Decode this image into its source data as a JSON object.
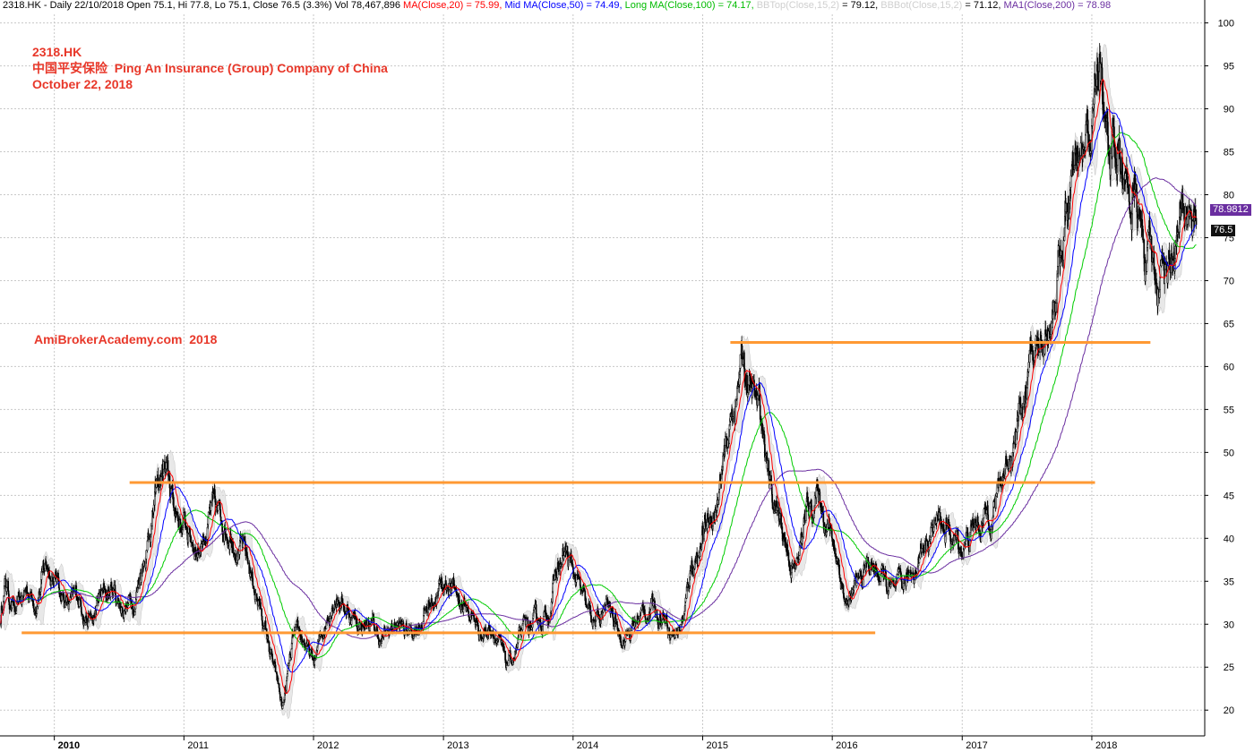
{
  "header": {
    "symbol_info": "2318.HK - Daily 22/10/2018 Open 75.1, Hi 77.8, Lo 75.1, Close 76.5 (3.3%) Vol 78,467,896 ",
    "ma20_text": "MA(Close,20) = 75.99, ",
    "ma50_text": "Mid MA(Close,50) = 74.49, ",
    "ma100_text": "Long MA(Close,100) = 74.17, ",
    "bbtop_label": "BBTop(Close,15,2)",
    "bbtop_value": " = 79.12, ",
    "bbbot_label": "BBBot(Close,15,2)",
    "bbbot_value": " = 71.12, ",
    "ma200_text": "MA1(Close,200) = 78.98"
  },
  "title": {
    "line1": "2318.HK",
    "line2": "中国平安保险  Ping An Insurance (Group) Company of China",
    "line3": "October 22, 2018"
  },
  "watermark": "AmiBrokerAcademy.com  2018",
  "price_tags": {
    "ma200": "78.9812",
    "close": "76.5"
  },
  "colors": {
    "accent_text": "#e8382a",
    "ma20": "#ff0000",
    "ma50": "#0000ff",
    "ma100": "#00cc00",
    "ma200": "#6a2ea0",
    "bollinger_band": "#d9d9d9",
    "resistance": "#ff9933",
    "candles": "#000000",
    "grid": "#c8c8c8"
  },
  "chart_data": {
    "type": "candlestick",
    "ylim": [
      17,
      101
    ],
    "y_ticks": [
      20,
      25,
      30,
      35,
      40,
      45,
      50,
      55,
      60,
      65,
      70,
      75,
      80,
      85,
      90,
      95,
      100
    ],
    "x_tick_labels": [
      "2010",
      "2011",
      "2012",
      "2013",
      "2014",
      "2015",
      "2016",
      "2017",
      "2018"
    ],
    "x_tick_dates": [
      "2010-01-01",
      "2011-01-01",
      "2012-01-01",
      "2013-01-01",
      "2014-01-01",
      "2015-01-01",
      "2016-01-01",
      "2017-01-01",
      "2018-01-01"
    ],
    "x_start": "2009-08-01",
    "x_end": "2018-11-15",
    "grid": true,
    "price_path": [
      [
        "2009-08-01",
        30
      ],
      [
        "2009-08-15",
        35
      ],
      [
        "2009-09-15",
        31
      ],
      [
        "2009-10-15",
        34
      ],
      [
        "2009-11-10",
        33
      ],
      [
        "2009-12-10",
        37
      ],
      [
        "2010-01-10",
        35
      ],
      [
        "2010-02-10",
        32
      ],
      [
        "2010-03-10",
        33
      ],
      [
        "2010-04-20",
        30
      ],
      [
        "2010-05-10",
        33
      ],
      [
        "2010-06-15",
        34
      ],
      [
        "2010-07-10",
        32
      ],
      [
        "2010-08-15",
        33
      ],
      [
        "2010-09-15",
        39
      ],
      [
        "2010-10-15",
        45
      ],
      [
        "2010-11-05",
        48
      ],
      [
        "2010-12-01",
        44
      ],
      [
        "2010-12-25",
        42
      ],
      [
        "2011-02-10",
        39
      ],
      [
        "2011-03-20",
        43
      ],
      [
        "2011-04-15",
        42
      ],
      [
        "2011-05-20",
        41
      ],
      [
        "2011-06-20",
        38
      ],
      [
        "2011-07-15",
        35
      ],
      [
        "2011-08-20",
        29
      ],
      [
        "2011-09-15",
        24
      ],
      [
        "2011-10-05",
        20
      ],
      [
        "2011-11-05",
        28
      ],
      [
        "2011-12-05",
        28
      ],
      [
        "2012-01-01",
        25
      ],
      [
        "2012-02-01",
        30
      ],
      [
        "2012-03-01",
        34
      ],
      [
        "2012-04-01",
        32
      ],
      [
        "2012-05-10",
        30
      ],
      [
        "2012-06-10",
        30
      ],
      [
        "2012-07-10",
        28
      ],
      [
        "2012-08-20",
        30
      ],
      [
        "2012-09-20",
        29
      ],
      [
        "2012-10-20",
        30
      ],
      [
        "2012-12-15",
        34
      ],
      [
        "2013-01-15",
        35
      ],
      [
        "2013-02-15",
        33
      ],
      [
        "2013-03-20",
        31
      ],
      [
        "2013-04-20",
        29
      ],
      [
        "2013-05-20",
        30
      ],
      [
        "2013-06-25",
        25
      ],
      [
        "2013-07-15",
        26
      ],
      [
        "2013-08-15",
        29
      ],
      [
        "2013-09-20",
        30
      ],
      [
        "2013-10-20",
        31
      ],
      [
        "2013-11-15",
        36
      ],
      [
        "2013-12-10",
        38
      ],
      [
        "2014-01-10",
        35
      ],
      [
        "2014-02-10",
        31
      ],
      [
        "2014-03-10",
        30
      ],
      [
        "2014-04-10",
        32
      ],
      [
        "2014-05-10",
        29
      ],
      [
        "2014-06-10",
        29
      ],
      [
        "2014-07-10",
        31
      ],
      [
        "2014-08-15",
        32
      ],
      [
        "2014-09-15",
        31
      ],
      [
        "2014-10-15",
        29
      ],
      [
        "2014-11-10",
        31
      ],
      [
        "2014-12-01",
        37
      ],
      [
        "2014-12-31",
        40
      ],
      [
        "2015-02-10",
        44
      ],
      [
        "2015-03-10",
        50
      ],
      [
        "2015-04-01",
        56
      ],
      [
        "2015-04-25",
        61
      ],
      [
        "2015-05-15",
        57
      ],
      [
        "2015-06-15",
        54
      ],
      [
        "2015-07-10",
        46
      ],
      [
        "2015-08-20",
        40
      ],
      [
        "2015-09-20",
        36
      ],
      [
        "2015-10-20",
        43
      ],
      [
        "2015-11-20",
        45
      ],
      [
        "2015-12-20",
        42
      ],
      [
        "2016-01-20",
        37
      ],
      [
        "2016-02-10",
        32
      ],
      [
        "2016-03-10",
        34
      ],
      [
        "2016-04-10",
        37
      ],
      [
        "2016-05-10",
        36
      ],
      [
        "2016-06-25",
        33
      ],
      [
        "2016-08-01",
        35
      ],
      [
        "2016-09-01",
        38
      ],
      [
        "2016-10-01",
        41
      ],
      [
        "2016-11-01",
        42
      ],
      [
        "2016-12-01",
        40
      ],
      [
        "2017-01-01",
        39
      ],
      [
        "2017-02-01",
        41
      ],
      [
        "2017-03-01",
        42
      ],
      [
        "2017-04-01",
        44
      ],
      [
        "2017-05-01",
        48
      ],
      [
        "2017-06-01",
        53
      ],
      [
        "2017-07-01",
        58
      ],
      [
        "2017-08-01",
        62
      ],
      [
        "2017-09-01",
        65
      ],
      [
        "2017-10-01",
        72
      ],
      [
        "2017-11-01",
        80
      ],
      [
        "2017-12-01",
        82
      ],
      [
        "2018-01-01",
        88
      ],
      [
        "2018-01-25",
        97
      ],
      [
        "2018-02-10",
        85
      ],
      [
        "2018-03-01",
        88
      ],
      [
        "2018-03-20",
        86
      ],
      [
        "2018-04-10",
        80
      ],
      [
        "2018-05-01",
        79
      ],
      [
        "2018-06-01",
        73
      ],
      [
        "2018-07-01",
        70
      ],
      [
        "2018-08-01",
        73
      ],
      [
        "2018-09-01",
        75
      ],
      [
        "2018-10-01",
        79
      ],
      [
        "2018-10-22",
        76.5
      ]
    ],
    "resistance_lines": [
      {
        "from": "2009-10-01",
        "to": "2016-05-01",
        "y": 29.0
      },
      {
        "from": "2010-08-01",
        "to": "2018-01-10",
        "y": 46.5
      },
      {
        "from": "2015-03-20",
        "to": "2018-06-15",
        "y": 62.8
      }
    ],
    "series": [
      {
        "name": "MA(Close,20)",
        "value": 75.99
      },
      {
        "name": "Mid MA(Close,50)",
        "value": 74.49
      },
      {
        "name": "Long MA(Close,100)",
        "value": 74.17
      },
      {
        "name": "BBTop(Close,15,2)",
        "value": 79.12
      },
      {
        "name": "BBBot(Close,15,2)",
        "value": 71.12
      },
      {
        "name": "MA1(Close,200)",
        "value": 78.98
      }
    ]
  }
}
